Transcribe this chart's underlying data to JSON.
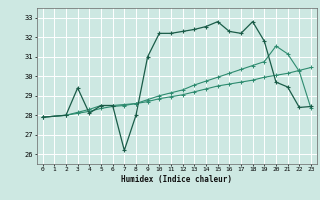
{
  "background_color": "#cde8e2",
  "grid_color": "#ffffff",
  "line_color_light": "#2d8b6f",
  "line_color_dark": "#1a5c48",
  "line1_x": [
    0,
    2,
    3,
    4,
    5,
    6,
    7,
    8,
    9,
    10,
    11,
    12,
    13,
    14,
    15,
    16,
    17,
    18,
    19,
    20,
    21,
    22,
    23
  ],
  "line1_y": [
    27.9,
    28.0,
    28.1,
    28.2,
    28.35,
    28.45,
    28.5,
    28.6,
    28.7,
    28.85,
    28.95,
    29.05,
    29.2,
    29.35,
    29.5,
    29.6,
    29.7,
    29.8,
    29.95,
    30.05,
    30.15,
    30.3,
    30.45
  ],
  "line2_x": [
    0,
    2,
    3,
    4,
    5,
    6,
    7,
    8,
    9,
    10,
    11,
    12,
    13,
    14,
    15,
    16,
    17,
    18,
    19,
    20,
    21,
    22,
    23
  ],
  "line2_y": [
    27.9,
    28.0,
    28.15,
    28.3,
    28.5,
    28.5,
    28.55,
    28.6,
    28.8,
    29.0,
    29.15,
    29.3,
    29.55,
    29.75,
    29.95,
    30.15,
    30.35,
    30.55,
    30.75,
    31.55,
    31.15,
    30.25,
    28.35
  ],
  "line3_x": [
    0,
    2,
    3,
    4,
    5,
    6,
    7,
    8,
    9,
    10,
    11,
    12,
    13,
    14,
    15,
    16,
    17,
    18,
    19,
    20,
    21,
    22,
    23
  ],
  "line3_y": [
    27.9,
    28.0,
    29.4,
    28.1,
    28.5,
    28.5,
    26.2,
    28.0,
    31.0,
    32.2,
    32.2,
    32.3,
    32.4,
    32.55,
    32.8,
    32.3,
    32.2,
    32.8,
    31.8,
    29.7,
    29.45,
    28.4,
    28.45
  ],
  "xlabel": "Humidex (Indice chaleur)",
  "ylim": [
    25.5,
    33.5
  ],
  "xlim": [
    -0.5,
    23.5
  ],
  "yticks": [
    26,
    27,
    28,
    29,
    30,
    31,
    32,
    33
  ],
  "xticks": [
    0,
    1,
    2,
    3,
    4,
    5,
    6,
    7,
    8,
    9,
    10,
    11,
    12,
    13,
    14,
    15,
    16,
    17,
    18,
    19,
    20,
    21,
    22,
    23
  ]
}
